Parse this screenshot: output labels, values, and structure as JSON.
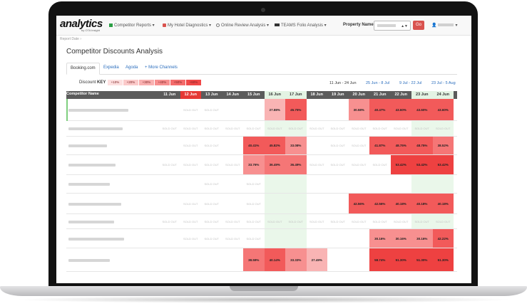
{
  "navbar": {
    "logo_text": "analytics",
    "logo_sub": "by OTA Insight",
    "items": [
      {
        "label": "Competitor Reports ▾",
        "icon": "bar-chart-icon",
        "color": "#2c9f45"
      },
      {
        "label": "My Hotel Diagnostics ▾",
        "icon": "heart-monitor-icon",
        "color": "#d9534f"
      },
      {
        "label": "Online Review Analysis ▾",
        "icon": "speech-bubble-icon",
        "color": "#777777"
      },
      {
        "label": "TEAMS Folio Analysis ▾",
        "icon": "card-icon",
        "color": "#333333"
      }
    ],
    "property_label": "Property Name:",
    "go_label": "Go",
    "user_icon": "user-icon"
  },
  "breadcrumb": "Report Date ›",
  "page_title": "Competitor Discounts Analysis",
  "tabs": [
    "Booking.com",
    "Expedia",
    "Agoda",
    "+ More Channels"
  ],
  "discount_key": {
    "label_pre": "Discount ",
    "label_bold": "KEY",
    "levels": [
      {
        "label": "+10%",
        "color": "#fde0e0"
      },
      {
        "label": "+20%",
        "color": "#fbcaca"
      },
      {
        "label": "+30%",
        "color": "#f9b0b0"
      },
      {
        "label": "+40%",
        "color": "#f78f8f"
      },
      {
        "label": "+50%",
        "color": "#f46b6b"
      },
      {
        "label": "+60%",
        "color": "#f04848"
      }
    ]
  },
  "date_ranges": [
    "11 Jun - 24 Jun",
    "25 Jun - 8 Jul",
    "9 Jul - 22 Jul",
    "23 Jul - 5 Aug"
  ],
  "table": {
    "name_header": "Competitor Name",
    "days": [
      "11 Jun",
      "12 Jun",
      "13 Jun",
      "14 Jun",
      "15 Jun",
      "16 Jun",
      "17 Jun",
      "18 Jun",
      "19 Jun",
      "20 Jun",
      "21 Jun",
      "22 Jun",
      "23 Jun",
      "24 Jun"
    ],
    "day_colors": [
      "#5b5b5b",
      "#e53935",
      "#5b5b5b",
      "#5b5b5b",
      "#5b5b5b",
      "#e3f3e3",
      "#e3f3e3",
      "#5b5b5b",
      "#5b5b5b",
      "#5b5b5b",
      "#5b5b5b",
      "#5b5b5b",
      "#e3f3e3",
      "#e3f3e3"
    ],
    "day_text_colors": [
      "#ffffff",
      "#ffffff",
      "#ffffff",
      "#ffffff",
      "#ffffff",
      "#333333",
      "#333333",
      "#ffffff",
      "#ffffff",
      "#ffffff",
      "#ffffff",
      "#ffffff",
      "#333333",
      "#333333"
    ],
    "sold_out": "SOLD OUT",
    "rows": [
      {
        "name_width": 84,
        "cells": [
          "",
          "SO",
          "SO",
          "",
          "",
          "27.88%",
          "45.75%",
          "",
          "",
          "30.58%",
          "40.47%",
          "43.60%",
          "43.60%",
          "43.60%"
        ]
      },
      {
        "name_width": 76,
        "cells": [
          "SO",
          "SO",
          "SO",
          "SO",
          "SO",
          "SO",
          "SO",
          "SO",
          "SO",
          "SO",
          "SO",
          "SO",
          "SO",
          "SO"
        ]
      },
      {
        "name_width": 54,
        "cells": [
          "",
          "SO",
          "SO",
          "",
          "40.41%",
          "45.82%",
          "33.08%",
          "",
          "SO",
          "SO",
          "41.87%",
          "48.75%",
          "48.75%",
          "38.52%"
        ]
      },
      {
        "name_width": 66,
        "cells": [
          "SO",
          "SO",
          "SO",
          "SO",
          "33.76%",
          "36.49%",
          "36.49%",
          "SO",
          "SO",
          "SO",
          "SO",
          "53.42%",
          "53.42%",
          "53.42%"
        ]
      },
      {
        "name_width": 58,
        "cells": [
          "",
          "",
          "SO",
          "",
          "SO",
          "",
          "",
          "",
          "",
          "",
          "",
          "",
          "",
          ""
        ]
      },
      {
        "name_width": 74,
        "cells": [
          "",
          "SO",
          "SO",
          "",
          "SO",
          "",
          "",
          "",
          "",
          "42.56%",
          "42.56%",
          "40.18%",
          "40.18%",
          "40.18%"
        ]
      },
      {
        "name_width": 64,
        "cells": [
          "SO",
          "SO",
          "SO",
          "SO",
          "SO",
          "SO",
          "SO",
          "SO",
          "SO",
          "SO",
          "SO",
          "SO",
          "SO",
          "SO"
        ]
      },
      {
        "name_width": 78,
        "cells": [
          "",
          "SO",
          "SO",
          "SO",
          "SO",
          "",
          "",
          "",
          "",
          "",
          "30.16%",
          "30.16%",
          "30.16%",
          "42.22%"
        ]
      },
      {
        "name_width": 58,
        "cells": [
          "",
          "",
          "",
          "",
          "38.59%",
          "40.14%",
          "33.33%",
          "27.49%",
          "",
          "",
          "58.74%",
          "51.30%",
          "51.30%",
          "51.30%"
        ]
      }
    ]
  }
}
